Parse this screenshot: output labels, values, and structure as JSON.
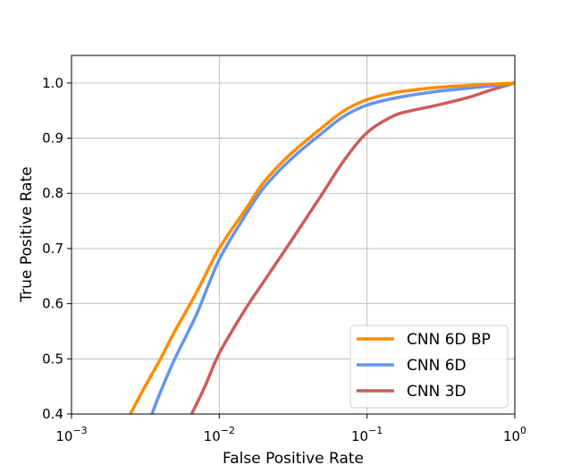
{
  "chart_data": {
    "type": "line",
    "title": "",
    "xlabel": "False Positive Rate",
    "ylabel": "True Positive Rate",
    "xscale": "log",
    "xlim": [
      0.001,
      1
    ],
    "ylim": [
      0.4,
      1.05
    ],
    "grid": true,
    "legend_position": "lower-right",
    "x_ticks": [
      {
        "value": 0.001,
        "base": "10",
        "exp": "−3"
      },
      {
        "value": 0.01,
        "base": "10",
        "exp": "−2"
      },
      {
        "value": 0.1,
        "base": "10",
        "exp": "−1"
      },
      {
        "value": 1,
        "base": "10",
        "exp": "0"
      }
    ],
    "y_ticks": [
      {
        "value": 0.4,
        "label": "0.4"
      },
      {
        "value": 0.5,
        "label": "0.5"
      },
      {
        "value": 0.6,
        "label": "0.6"
      },
      {
        "value": 0.7,
        "label": "0.7"
      },
      {
        "value": 0.8,
        "label": "0.8"
      },
      {
        "value": 0.9,
        "label": "0.9"
      },
      {
        "value": 1.0,
        "label": "1.0"
      }
    ],
    "series": [
      {
        "name": "CNN 6D BP",
        "color": "#ff8c00",
        "points": [
          [
            0.0025,
            0.4
          ],
          [
            0.003,
            0.44
          ],
          [
            0.004,
            0.5
          ],
          [
            0.005,
            0.55
          ],
          [
            0.007,
            0.62
          ],
          [
            0.01,
            0.7
          ],
          [
            0.015,
            0.77
          ],
          [
            0.02,
            0.82
          ],
          [
            0.03,
            0.87
          ],
          [
            0.05,
            0.92
          ],
          [
            0.07,
            0.95
          ],
          [
            0.1,
            0.97
          ],
          [
            0.15,
            0.982
          ],
          [
            0.2,
            0.987
          ],
          [
            0.3,
            0.992
          ],
          [
            0.5,
            0.996
          ],
          [
            0.7,
            0.998
          ],
          [
            1,
            1.0
          ]
        ]
      },
      {
        "name": "CNN 6D",
        "color": "#6495ed",
        "points": [
          [
            0.0035,
            0.4
          ],
          [
            0.004,
            0.44
          ],
          [
            0.005,
            0.5
          ],
          [
            0.007,
            0.58
          ],
          [
            0.01,
            0.68
          ],
          [
            0.015,
            0.76
          ],
          [
            0.02,
            0.81
          ],
          [
            0.03,
            0.86
          ],
          [
            0.05,
            0.91
          ],
          [
            0.07,
            0.94
          ],
          [
            0.1,
            0.96
          ],
          [
            0.15,
            0.972
          ],
          [
            0.2,
            0.978
          ],
          [
            0.3,
            0.985
          ],
          [
            0.5,
            0.991
          ],
          [
            0.7,
            0.995
          ],
          [
            1,
            1.0
          ]
        ]
      },
      {
        "name": "CNN 3D",
        "color": "#cd5c5c",
        "points": [
          [
            0.0065,
            0.4
          ],
          [
            0.008,
            0.45
          ],
          [
            0.01,
            0.51
          ],
          [
            0.015,
            0.59
          ],
          [
            0.02,
            0.64
          ],
          [
            0.03,
            0.71
          ],
          [
            0.05,
            0.8
          ],
          [
            0.07,
            0.86
          ],
          [
            0.1,
            0.91
          ],
          [
            0.15,
            0.94
          ],
          [
            0.2,
            0.95
          ],
          [
            0.3,
            0.96
          ],
          [
            0.5,
            0.975
          ],
          [
            0.7,
            0.988
          ],
          [
            1,
            1.0
          ]
        ]
      }
    ]
  }
}
